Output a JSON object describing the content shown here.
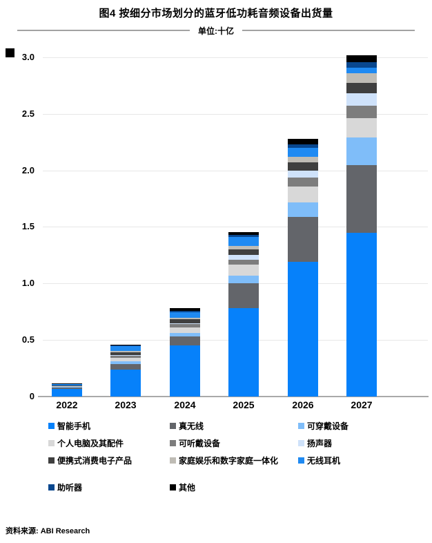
{
  "title": "图4 按细分市场划分的蓝牙低功耗音频设备出货量",
  "subtitle": "单位:十亿",
  "source": "资料来源: ABI Research",
  "chart_data": {
    "type": "bar",
    "stacked": true,
    "title": "图4 按细分市场划分的蓝牙低功耗音频设备出货量",
    "unit_label": "单位:十亿",
    "xlabel": "",
    "ylabel": "",
    "ylim": [
      0,
      3.0
    ],
    "grid": true,
    "legend_position": "bottom",
    "categories": [
      "2022",
      "2023",
      "2024",
      "2025",
      "2026",
      "2027"
    ],
    "yticks": [
      {
        "value": 0,
        "label": "0"
      },
      {
        "value": 0.5,
        "label": "0.5"
      },
      {
        "value": 1.0,
        "label": "1.0"
      },
      {
        "value": 1.5,
        "label": "1.5"
      },
      {
        "value": 2.0,
        "label": "2.0"
      },
      {
        "value": 2.5,
        "label": "2.5"
      },
      {
        "value": 3.0,
        "label": "3.0"
      }
    ],
    "series": [
      {
        "name": "智能手机",
        "color": "#0681fa",
        "values": [
          0.065,
          0.24,
          0.45,
          0.78,
          1.19,
          1.45
        ]
      },
      {
        "name": "真无线",
        "color": "#63656a",
        "values": [
          0.015,
          0.05,
          0.08,
          0.22,
          0.4,
          0.6
        ]
      },
      {
        "name": "可穿戴设备",
        "color": "#7fbdf9",
        "values": [
          0.006,
          0.024,
          0.032,
          0.07,
          0.13,
          0.24
        ]
      },
      {
        "name": "个人电脑及其配件",
        "color": "#d8d8d8",
        "values": [
          0.004,
          0.028,
          0.05,
          0.095,
          0.14,
          0.17
        ]
      },
      {
        "name": "可听戴设备",
        "color": "#7d7d7d",
        "values": [
          0.003,
          0.016,
          0.03,
          0.045,
          0.08,
          0.115
        ]
      },
      {
        "name": "扬声器",
        "color": "#cfe2fa",
        "values": [
          0.002,
          0.008,
          0.008,
          0.045,
          0.06,
          0.105
        ]
      },
      {
        "name": "便携式消费电子产品",
        "color": "#3f3f3f",
        "values": [
          0.003,
          0.024,
          0.037,
          0.045,
          0.07,
          0.095
        ]
      },
      {
        "name": "家庭娱乐和数字家庭一体化",
        "color": "#bfbcb5",
        "values": [
          0.002,
          0.012,
          0.012,
          0.03,
          0.05,
          0.085
        ]
      },
      {
        "name": "无线耳机",
        "color": "#1f8af2",
        "values": [
          0.008,
          0.044,
          0.05,
          0.08,
          0.08,
          0.05
        ]
      },
      {
        "name": "助听器",
        "color": "#09478e",
        "values": [
          0.003,
          0.005,
          0.012,
          0.02,
          0.03,
          0.05
        ]
      },
      {
        "name": "其他",
        "color": "#000000",
        "values": [
          0.003,
          0.005,
          0.02,
          0.025,
          0.05,
          0.06
        ]
      }
    ]
  }
}
